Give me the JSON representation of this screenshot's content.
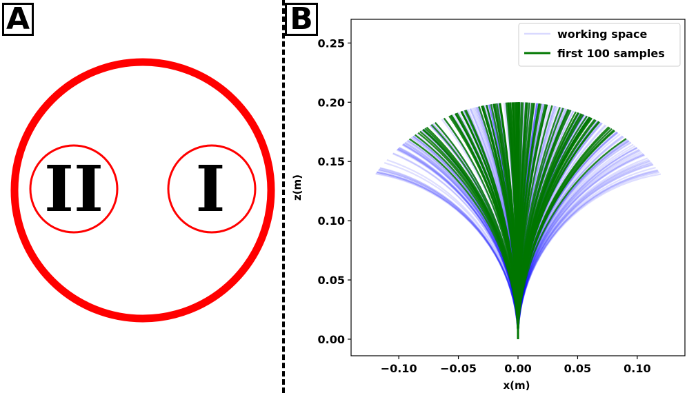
{
  "panels": {
    "a": {
      "label": "A",
      "region_labels": [
        "II",
        "I"
      ],
      "ring_color": "#ff0000"
    },
    "b": {
      "label": "B"
    }
  },
  "chart_data": {
    "type": "line",
    "title": "",
    "xlabel": "x(m)",
    "ylabel": "z(m)",
    "xlim": [
      -0.14,
      0.14
    ],
    "ylim": [
      -0.014,
      0.27
    ],
    "xticks": [
      -0.1,
      -0.05,
      0.0,
      0.05,
      0.1
    ],
    "xtick_labels": [
      "−0.10",
      "−0.05",
      "0.00",
      "0.05",
      "0.10"
    ],
    "yticks": [
      0.0,
      0.05,
      0.1,
      0.15,
      0.2,
      0.25
    ],
    "ytick_labels": [
      "0.00",
      "0.05",
      "0.10",
      "0.15",
      "0.20",
      "0.25"
    ],
    "grid": false,
    "legend_position": "top-right",
    "series": [
      {
        "name": "working space",
        "color": "#0000ff",
        "style": "translucent bundle",
        "description_points": [
          {
            "x": -0.133,
            "z": 0.119
          },
          {
            "x": -0.09,
            "z": 0.175
          },
          {
            "x": 0.0,
            "z": 0.2
          },
          {
            "x": 0.09,
            "z": 0.175
          },
          {
            "x": 0.126,
            "z": 0.131
          }
        ]
      },
      {
        "name": "first 100 samples",
        "color": "#007700",
        "style": "solid bundle",
        "description_points": [
          {
            "x": -0.09,
            "z": 0.172
          },
          {
            "x": 0.0,
            "z": 0.2
          },
          {
            "x": 0.095,
            "z": 0.166
          }
        ]
      }
    ]
  }
}
